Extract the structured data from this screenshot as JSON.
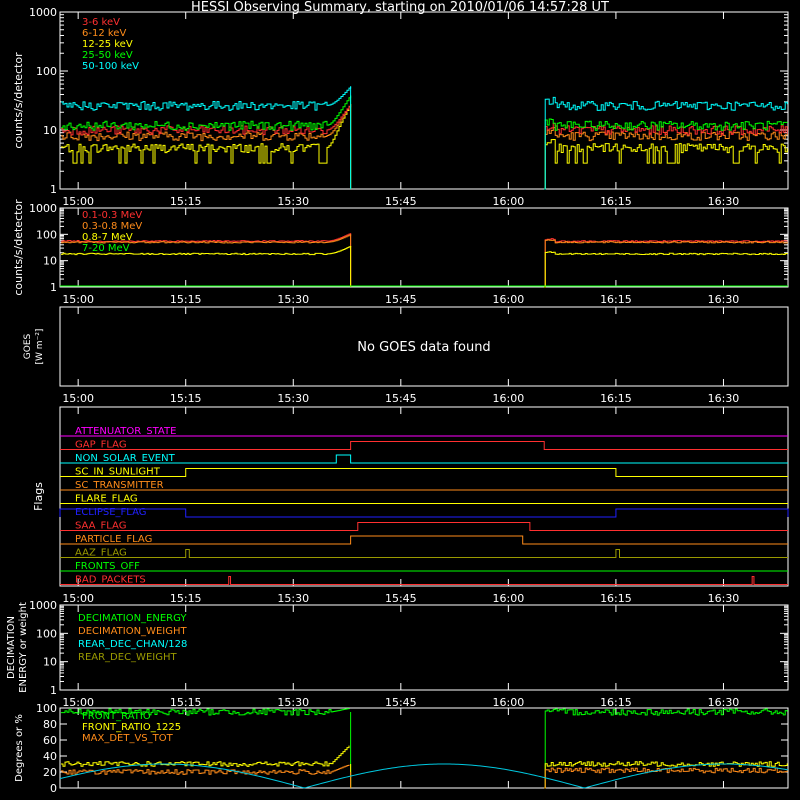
{
  "title": "HESSI Observing Summary, starting on 2010/01/06 14:57:28 UT",
  "x_axis": {
    "start": "14:57:28",
    "end": "16:39:00",
    "ticks": [
      "15:00",
      "15:15",
      "15:30",
      "15:45",
      "16:00",
      "16:15",
      "16:30"
    ]
  },
  "chart_data": [
    {
      "panel": "low-energy-rates",
      "type": "line",
      "ylabel": "counts/s/detector",
      "yscale": "log",
      "ylim": [
        1,
        1000
      ],
      "yticks": [
        "1",
        "10",
        "100",
        "1000"
      ],
      "legend_position": "top-left",
      "series": [
        {
          "name": "3-6 keV",
          "color": "#ff3030",
          "before": 10,
          "after": 10
        },
        {
          "name": "6-12 keV",
          "color": "#ff8c1a",
          "before": 8,
          "after": 8
        },
        {
          "name": "12-25 keV",
          "color": "#ffff00",
          "before": 5,
          "after": 5
        },
        {
          "name": "25-50 keV",
          "color": "#00ff00",
          "before": 12,
          "after": 12
        },
        {
          "name": "50-100 keV",
          "color": "#00ffff",
          "before": 26,
          "after": 26
        }
      ],
      "data_gap": [
        "15:38",
        "16:05"
      ],
      "rise_before_gap_to": 55
    },
    {
      "panel": "high-energy-rates",
      "type": "line",
      "ylabel": "counts/s/detector",
      "yscale": "log",
      "ylim": [
        1,
        1000
      ],
      "yticks": [
        "1",
        "10",
        "100",
        "1000"
      ],
      "legend_position": "top-left",
      "series": [
        {
          "name": "0.1-0.3 MeV",
          "color": "#ff3030",
          "before": 55,
          "after": 55
        },
        {
          "name": "0.3-0.8 MeV",
          "color": "#ff8c1a",
          "before": 50,
          "after": 50
        },
        {
          "name": "0.8-7 MeV",
          "color": "#ffff00",
          "before": 18,
          "after": 18
        },
        {
          "name": "7-20 MeV",
          "color": "#00ff00",
          "before": 1,
          "after": 1
        }
      ],
      "data_gap": [
        "15:38",
        "16:05"
      ]
    },
    {
      "panel": "goes",
      "type": "line",
      "ylabel_lines": [
        "GOES",
        "[W m⁻²]"
      ],
      "message": "No GOES data found"
    },
    {
      "panel": "flags",
      "type": "line",
      "ylabel": "Flags",
      "flags": [
        {
          "name": "ATTENUATOR_STATE",
          "color": "#ff00ff",
          "segments": []
        },
        {
          "name": "GAP_FLAG",
          "color": "#ff3030",
          "segments": [
            [
              "15:38",
              "16:05"
            ]
          ]
        },
        {
          "name": "NON_SOLAR_EVENT",
          "color": "#00ffff",
          "segments": [
            [
              "15:36",
              "15:38"
            ]
          ]
        },
        {
          "name": "SC_IN_SUNLIGHT",
          "color": "#ffff00",
          "segments": [
            [
              "15:15",
              "16:15"
            ]
          ]
        },
        {
          "name": "SC_TRANSMITTER",
          "color": "#ff8c1a",
          "segments": []
        },
        {
          "name": "FLARE_FLAG",
          "color": "#ffff00",
          "segments": []
        },
        {
          "name": "ECLIPSE_FLAG",
          "color": "#2020ff",
          "segments": [
            [
              "14:57:28",
              "15:15"
            ],
            [
              "16:15",
              "16:39"
            ]
          ]
        },
        {
          "name": "SAA_FLAG",
          "color": "#ff3030",
          "segments": [
            [
              "15:39",
              "16:03"
            ]
          ]
        },
        {
          "name": "PARTICLE_FLAG",
          "color": "#ff8c1a",
          "segments": [
            [
              "15:38",
              "16:02"
            ]
          ]
        },
        {
          "name": "AAZ_FLAG",
          "color": "#9a9a00",
          "segments": [
            [
              "15:15",
              "15:15:30"
            ],
            [
              "16:15",
              "16:15:30"
            ]
          ]
        },
        {
          "name": "FRONTS_OFF",
          "color": "#00ff00",
          "segments": []
        },
        {
          "name": "BAD_PACKETS",
          "color": "#ff3030",
          "segments": [
            [
              "15:21",
              "15:21:15"
            ],
            [
              "16:34",
              "16:34:15"
            ]
          ]
        }
      ]
    },
    {
      "panel": "decimation",
      "type": "line",
      "ylabel_lines": [
        "DECIMATION",
        "ENERGY or weight"
      ],
      "yscale": "log",
      "ylim": [
        1,
        1000
      ],
      "yticks": [
        "1",
        "10",
        "100",
        "1000"
      ],
      "legend_position": "top-left",
      "series": [
        {
          "name": "DECIMATION_ENERGY",
          "color": "#00ff00"
        },
        {
          "name": "DECIMATION_WEIGHT",
          "color": "#ff8c1a"
        },
        {
          "name": "REAR_DEC_CHAN/128",
          "color": "#00ffff"
        },
        {
          "name": "REAR_DEC_WEIGHT",
          "color": "#9a9a00"
        }
      ]
    },
    {
      "panel": "ratios",
      "type": "line",
      "ylabel": "Degrees or %",
      "ylim": [
        0,
        100
      ],
      "yticks": [
        "0",
        "20",
        "40",
        "60",
        "80",
        "100"
      ],
      "legend_position": "top-left",
      "series": [
        {
          "name": "FRONT_RATIO",
          "color": "#00ff00",
          "before": 95,
          "after": 95
        },
        {
          "name": "FRONT_RATIO_1225",
          "color": "#ffff00",
          "before": 30,
          "after": 30
        },
        {
          "name": "MAX_DET_VS_TOT",
          "color": "#ff8c1a",
          "before": 20,
          "after": 22
        },
        {
          "name": "",
          "color": "#00c8e0",
          "kind": "angle"
        }
      ],
      "data_gap": [
        "15:38",
        "16:05"
      ]
    }
  ]
}
